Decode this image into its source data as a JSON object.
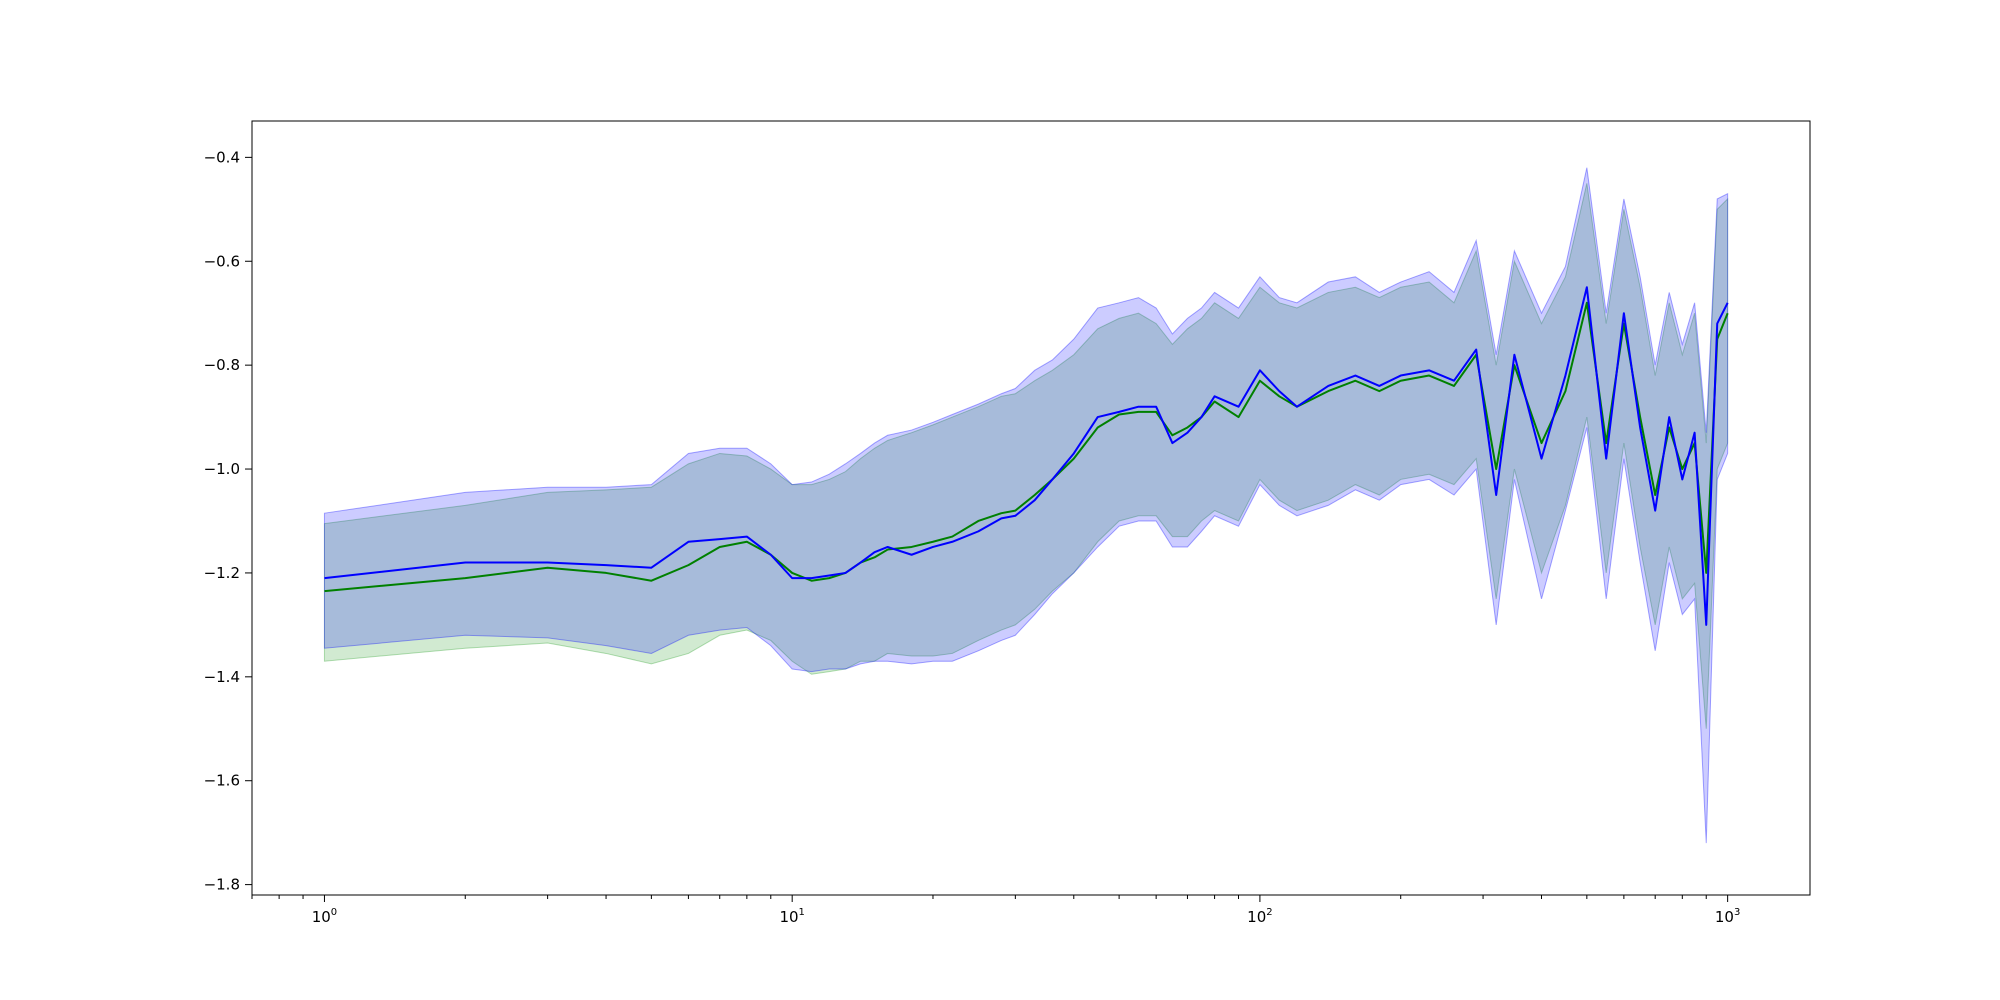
{
  "chart_data": {
    "type": "line",
    "title": "",
    "xlabel": "",
    "ylabel": "",
    "x_scale": "log",
    "xlim": [
      0.7,
      1500
    ],
    "ylim": [
      -1.82,
      -0.33
    ],
    "grid": false,
    "legend": "none",
    "x_ticks": [
      {
        "value": 1,
        "base": "10",
        "exp": "0"
      },
      {
        "value": 10,
        "base": "10",
        "exp": "1"
      },
      {
        "value": 100,
        "base": "10",
        "exp": "2"
      },
      {
        "value": 1000,
        "base": "10",
        "exp": "3"
      }
    ],
    "y_ticks": [
      {
        "value": -1.8,
        "label": "−1.8"
      },
      {
        "value": -1.6,
        "label": "−1.6"
      },
      {
        "value": -1.4,
        "label": "−1.4"
      },
      {
        "value": -1.2,
        "label": "−1.2"
      },
      {
        "value": -1.0,
        "label": "−1.0"
      },
      {
        "value": -0.8,
        "label": "−0.8"
      },
      {
        "value": -0.6,
        "label": "−0.6"
      },
      {
        "value": -0.4,
        "label": "−0.4"
      }
    ],
    "series": [
      {
        "color": "#008000",
        "band_color": "#2ca02c",
        "band_opacity": 0.22,
        "x": [
          1,
          2,
          3,
          4,
          5,
          6,
          7,
          8,
          9,
          10,
          11,
          12,
          13,
          14,
          15,
          16,
          18,
          20,
          22,
          25,
          28,
          30,
          33,
          36,
          40,
          45,
          50,
          55,
          60,
          65,
          70,
          75,
          80,
          90,
          100,
          110,
          120,
          140,
          160,
          180,
          200,
          230,
          260,
          290,
          320,
          350,
          400,
          450,
          500,
          550,
          600,
          650,
          700,
          750,
          800,
          850,
          900,
          950,
          1000
        ],
        "mean": [
          -1.235,
          -1.21,
          -1.19,
          -1.2,
          -1.215,
          -1.185,
          -1.15,
          -1.14,
          -1.165,
          -1.2,
          -1.215,
          -1.21,
          -1.2,
          -1.18,
          -1.17,
          -1.155,
          -1.15,
          -1.14,
          -1.13,
          -1.1,
          -1.085,
          -1.08,
          -1.05,
          -1.02,
          -0.98,
          -0.92,
          -0.895,
          -0.89,
          -0.89,
          -0.935,
          -0.92,
          -0.9,
          -0.87,
          -0.9,
          -0.83,
          -0.86,
          -0.88,
          -0.85,
          -0.83,
          -0.85,
          -0.83,
          -0.82,
          -0.84,
          -0.78,
          -1.0,
          -0.8,
          -0.95,
          -0.85,
          -0.68,
          -0.95,
          -0.72,
          -0.9,
          -1.05,
          -0.92,
          -1.0,
          -0.95,
          -1.2,
          -0.75,
          -0.7
        ],
        "upper": [
          -1.105,
          -1.07,
          -1.045,
          -1.04,
          -1.035,
          -0.99,
          -0.97,
          -0.975,
          -1.0,
          -1.03,
          -1.03,
          -1.02,
          -1.005,
          -0.98,
          -0.96,
          -0.945,
          -0.93,
          -0.915,
          -0.9,
          -0.88,
          -0.86,
          -0.855,
          -0.83,
          -0.81,
          -0.78,
          -0.73,
          -0.71,
          -0.7,
          -0.72,
          -0.76,
          -0.73,
          -0.71,
          -0.68,
          -0.71,
          -0.65,
          -0.68,
          -0.69,
          -0.66,
          -0.65,
          -0.67,
          -0.65,
          -0.64,
          -0.68,
          -0.58,
          -0.8,
          -0.6,
          -0.72,
          -0.63,
          -0.45,
          -0.72,
          -0.5,
          -0.65,
          -0.82,
          -0.68,
          -0.78,
          -0.7,
          -0.95,
          -0.5,
          -0.48
        ],
        "lower": [
          -1.37,
          -1.345,
          -1.335,
          -1.355,
          -1.375,
          -1.355,
          -1.32,
          -1.31,
          -1.33,
          -1.37,
          -1.395,
          -1.39,
          -1.385,
          -1.37,
          -1.37,
          -1.355,
          -1.36,
          -1.36,
          -1.355,
          -1.33,
          -1.31,
          -1.3,
          -1.27,
          -1.235,
          -1.2,
          -1.14,
          -1.1,
          -1.09,
          -1.09,
          -1.13,
          -1.13,
          -1.1,
          -1.08,
          -1.1,
          -1.02,
          -1.06,
          -1.08,
          -1.06,
          -1.03,
          -1.05,
          -1.02,
          -1.01,
          -1.03,
          -0.98,
          -1.25,
          -1.0,
          -1.2,
          -1.07,
          -0.9,
          -1.2,
          -0.95,
          -1.15,
          -1.3,
          -1.15,
          -1.25,
          -1.22,
          -1.5,
          -1.0,
          -0.95
        ]
      },
      {
        "color": "#0000ff",
        "band_color": "#0000ff",
        "band_opacity": 0.2,
        "x": [
          1,
          2,
          3,
          4,
          5,
          6,
          7,
          8,
          9,
          10,
          11,
          12,
          13,
          14,
          15,
          16,
          18,
          20,
          22,
          25,
          28,
          30,
          33,
          36,
          40,
          45,
          50,
          55,
          60,
          65,
          70,
          75,
          80,
          90,
          100,
          110,
          120,
          140,
          160,
          180,
          200,
          230,
          260,
          290,
          320,
          350,
          400,
          450,
          500,
          550,
          600,
          650,
          700,
          750,
          800,
          850,
          900,
          950,
          1000
        ],
        "mean": [
          -1.21,
          -1.18,
          -1.18,
          -1.185,
          -1.19,
          -1.14,
          -1.135,
          -1.13,
          -1.165,
          -1.21,
          -1.21,
          -1.205,
          -1.2,
          -1.18,
          -1.16,
          -1.15,
          -1.165,
          -1.15,
          -1.14,
          -1.12,
          -1.095,
          -1.09,
          -1.06,
          -1.02,
          -0.97,
          -0.9,
          -0.89,
          -0.88,
          -0.88,
          -0.95,
          -0.93,
          -0.9,
          -0.86,
          -0.88,
          -0.81,
          -0.85,
          -0.88,
          -0.84,
          -0.82,
          -0.84,
          -0.82,
          -0.81,
          -0.83,
          -0.77,
          -1.05,
          -0.78,
          -0.98,
          -0.82,
          -0.65,
          -0.98,
          -0.7,
          -0.92,
          -1.08,
          -0.9,
          -1.02,
          -0.93,
          -1.3,
          -0.72,
          -0.68
        ],
        "upper": [
          -1.085,
          -1.045,
          -1.035,
          -1.035,
          -1.03,
          -0.97,
          -0.96,
          -0.96,
          -0.99,
          -1.03,
          -1.025,
          -1.01,
          -0.99,
          -0.97,
          -0.95,
          -0.935,
          -0.925,
          -0.91,
          -0.895,
          -0.875,
          -0.855,
          -0.845,
          -0.81,
          -0.79,
          -0.75,
          -0.69,
          -0.68,
          -0.67,
          -0.69,
          -0.74,
          -0.71,
          -0.69,
          -0.66,
          -0.69,
          -0.63,
          -0.67,
          -0.68,
          -0.64,
          -0.63,
          -0.66,
          -0.64,
          -0.62,
          -0.66,
          -0.56,
          -0.78,
          -0.58,
          -0.7,
          -0.61,
          -0.42,
          -0.7,
          -0.48,
          -0.63,
          -0.8,
          -0.66,
          -0.76,
          -0.68,
          -0.93,
          -0.48,
          -0.47
        ],
        "lower": [
          -1.345,
          -1.32,
          -1.325,
          -1.34,
          -1.355,
          -1.32,
          -1.31,
          -1.305,
          -1.34,
          -1.385,
          -1.39,
          -1.385,
          -1.385,
          -1.375,
          -1.37,
          -1.37,
          -1.375,
          -1.37,
          -1.37,
          -1.35,
          -1.33,
          -1.32,
          -1.28,
          -1.24,
          -1.2,
          -1.15,
          -1.11,
          -1.1,
          -1.1,
          -1.15,
          -1.15,
          -1.12,
          -1.09,
          -1.11,
          -1.03,
          -1.07,
          -1.09,
          -1.07,
          -1.04,
          -1.06,
          -1.03,
          -1.02,
          -1.05,
          -1.0,
          -1.3,
          -1.02,
          -1.25,
          -1.08,
          -0.92,
          -1.25,
          -0.98,
          -1.18,
          -1.35,
          -1.18,
          -1.28,
          -1.25,
          -1.72,
          -1.02,
          -0.97
        ]
      }
    ]
  }
}
